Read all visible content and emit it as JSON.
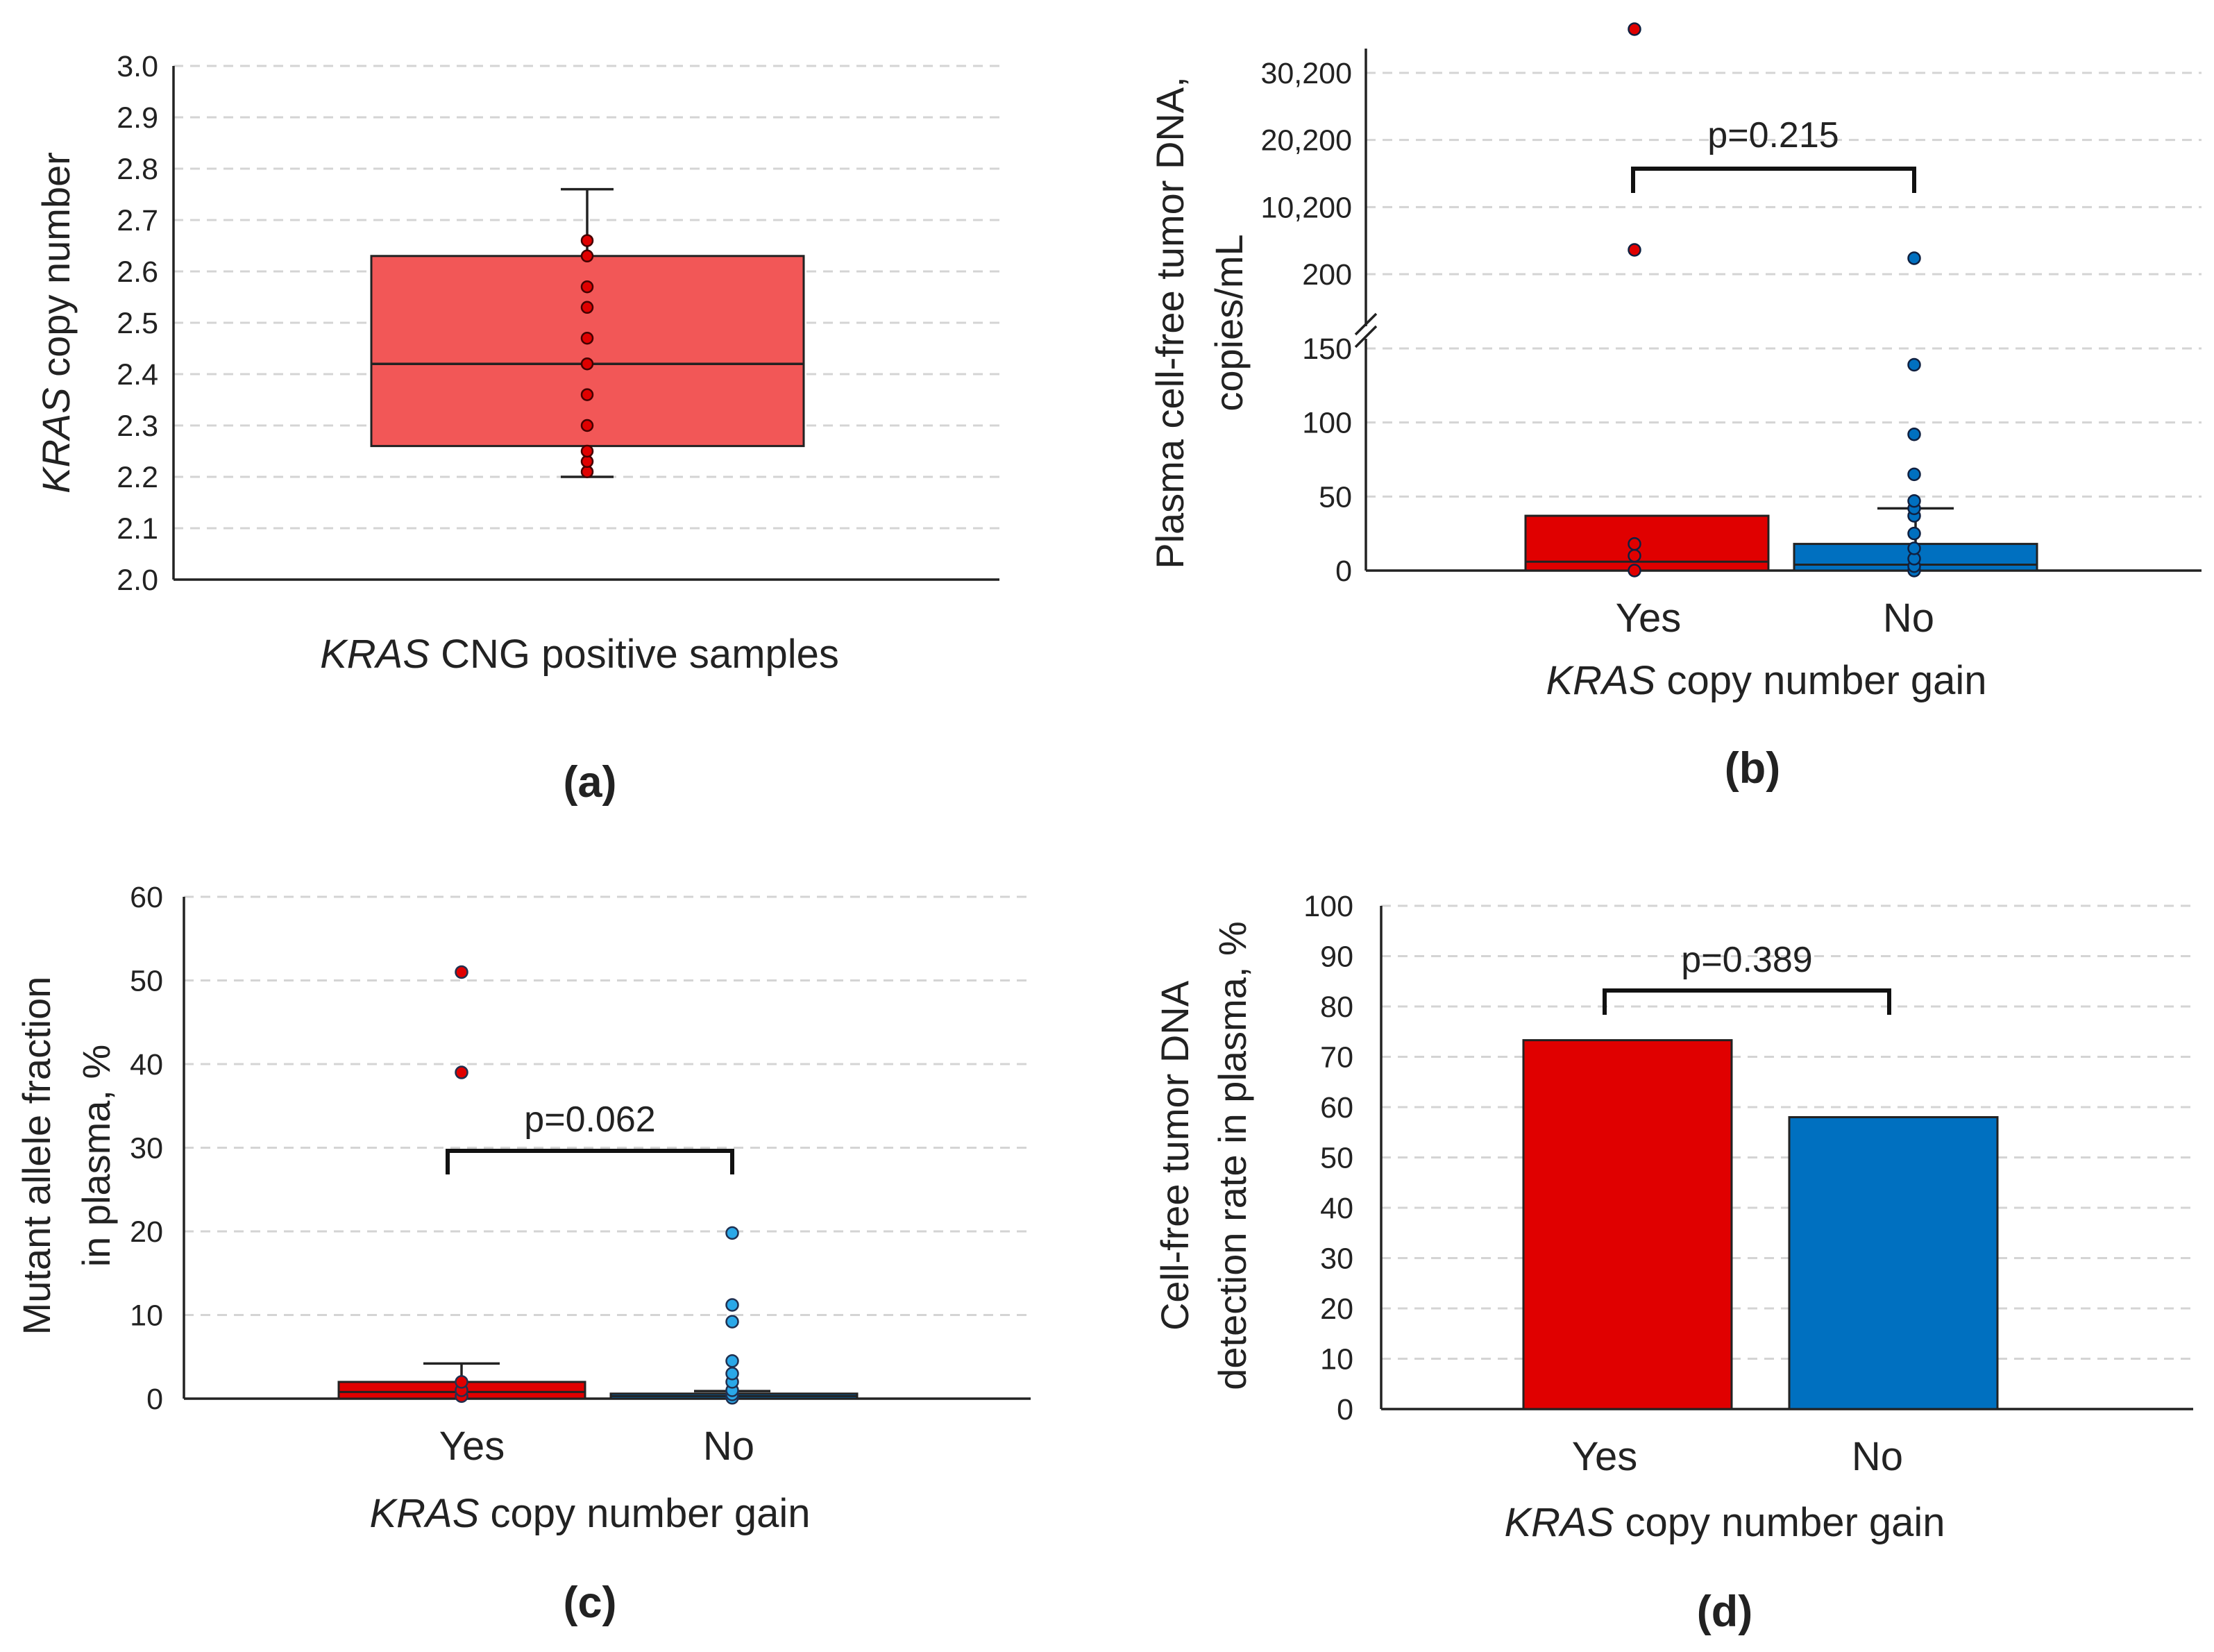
{
  "colors": {
    "red": "#e00000",
    "red_box": "#f25757",
    "blue": "#0070c0",
    "blue_light": "#2aa8e8",
    "grid": "#d4d4d4"
  },
  "chart_data": [
    {
      "id": "a",
      "panel_label": "(a)",
      "type": "box",
      "ylabel_italic": "KRAS",
      "ylabel_rest": " copy number",
      "xlabel_italic": "KRAS",
      "xlabel_rest": " CNG positive samples",
      "ylim": [
        2.0,
        3.0
      ],
      "yticks": [
        "2.0",
        "2.1",
        "2.2",
        "2.3",
        "2.4",
        "2.5",
        "2.6",
        "2.7",
        "2.8",
        "2.9",
        "3.0"
      ],
      "box": {
        "min": 2.2,
        "q1": 2.26,
        "median": 2.42,
        "q3": 2.63,
        "max": 2.76
      },
      "points": [
        2.21,
        2.23,
        2.25,
        2.3,
        2.36,
        2.42,
        2.47,
        2.53,
        2.57,
        2.63,
        2.66
      ],
      "color": "#f25757"
    },
    {
      "id": "b",
      "panel_label": "(b)",
      "type": "bar",
      "ylabel_line1": "Plasma cell-free tumor DNA,",
      "ylabel_line2": "copies/mL",
      "xlabel_italic": "KRAS",
      "xlabel_rest": " copy number gain",
      "categories": [
        "Yes",
        "No"
      ],
      "values": [
        37,
        18
      ],
      "medians": [
        6,
        4
      ],
      "error_upper": [
        null,
        42
      ],
      "yticks_lower": [
        "0",
        "50",
        "100",
        "150"
      ],
      "yticks_upper": [
        "200",
        "10,200",
        "20,200",
        "30,200"
      ],
      "axis_break": "between 150 and 200",
      "points": [
        {
          "category": "Yes",
          "values": [
            0,
            10,
            18,
            7000,
            40000
          ]
        },
        {
          "category": "No",
          "values": [
            0,
            3,
            8,
            15,
            25,
            37,
            42,
            47,
            65,
            92,
            139,
            5000
          ]
        }
      ],
      "annotation": "p=0.215"
    },
    {
      "id": "c",
      "panel_label": "(c)",
      "type": "bar",
      "ylabel_line1": "Mutant allele fraction",
      "ylabel_line2": "in plasma, %",
      "xlabel_italic": "KRAS",
      "xlabel_rest": " copy number gain",
      "categories": [
        "Yes",
        "No"
      ],
      "values": [
        2.0,
        0.6
      ],
      "medians": [
        0.8,
        0.3
      ],
      "error_upper": [
        4.2,
        0.9
      ],
      "ylim": [
        0,
        60
      ],
      "yticks": [
        "0",
        "10",
        "20",
        "30",
        "40",
        "50",
        "60"
      ],
      "points": [
        {
          "category": "Yes",
          "values": [
            0.3,
            1.0,
            2.0,
            39,
            51
          ]
        },
        {
          "category": "No",
          "values": [
            0.1,
            0.5,
            1.0,
            2.0,
            3.0,
            4.5,
            9.2,
            11.2,
            19.8
          ]
        }
      ],
      "annotation": "p=0.062"
    },
    {
      "id": "d",
      "panel_label": "(d)",
      "type": "bar",
      "ylabel_line1": "Cell-free tumor DNA",
      "ylabel_line2": "detection rate in plasma, %",
      "xlabel_italic": "KRAS",
      "xlabel_rest": " copy number gain",
      "categories": [
        "Yes",
        "No"
      ],
      "values": [
        73.3,
        58
      ],
      "ylim": [
        0,
        100
      ],
      "yticks": [
        "0",
        "10",
        "20",
        "30",
        "40",
        "50",
        "60",
        "70",
        "80",
        "90",
        "100"
      ],
      "annotation": "p=0.389"
    }
  ]
}
